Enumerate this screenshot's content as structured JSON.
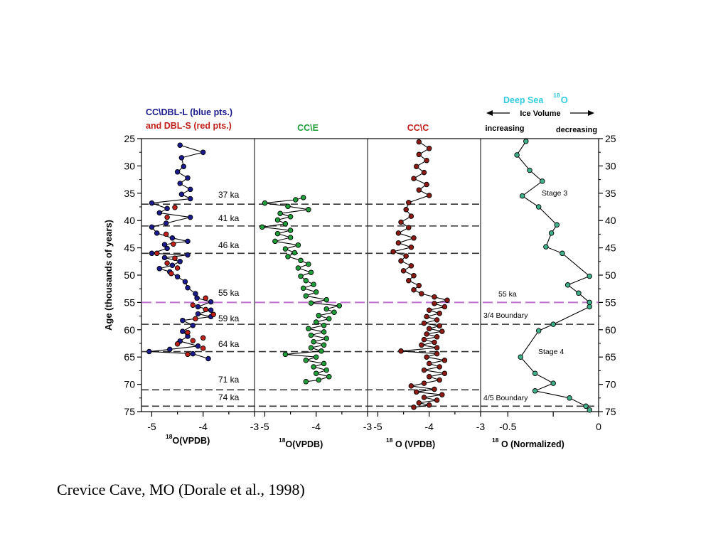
{
  "caption": "Crevice Cave, MO (Dorale et al., 1998)",
  "figure": {
    "y_axis_label": "Age (thousands of years)",
    "header": {
      "blue_line1": "CC\\DBL-L (blue pts.)",
      "red_line2": "and DBL-S (red pts.)",
      "panel2_title": "CC\\E",
      "panel3_title": "CC\\C",
      "deep_sea_title": "Deep Sea",
      "deep_sea_sup": "18",
      "deep_sea_o": "O",
      "ice_volume": "Ice Volume",
      "increasing": "increasing",
      "decreasing": "decreasing"
    },
    "x_labels": [
      {
        "sup": "18",
        "main": "O(VPDB)"
      },
      {
        "sup": "18",
        "main": "O(VPDB)"
      },
      {
        "sup": "18",
        "main": " O (VPDB)"
      },
      {
        "sup": "18",
        "main": " O (Normalized)"
      }
    ],
    "age_ticks": [
      "25",
      "30",
      "35",
      "40",
      "45",
      "50",
      "55",
      "60",
      "65",
      "70",
      "75"
    ],
    "panel_x_ticks": [
      [
        "-5",
        "-4",
        "-3"
      ],
      [
        "-5",
        "-4",
        "-3"
      ],
      [
        "-5",
        "-4",
        "-3"
      ],
      [
        "-0.5",
        "",
        "0"
      ]
    ],
    "event_labels": [
      "37 ka",
      "41 ka",
      "46 ka",
      "55 ka",
      "59 ka",
      "64 ka",
      "71 ka",
      "74 ka"
    ],
    "panel4_labels": {
      "stage3": "Stage 3",
      "ka55": "55 ka",
      "boundary34": "3/4 Boundary",
      "stage4": "Stage 4",
      "boundary45": "4/5 Boundary"
    },
    "colors": {
      "blue": "#1a1a8c",
      "red": "#c0201a",
      "green": "#1f9e3a",
      "dark_red": "#8c1a14",
      "teal": "#3fb08a",
      "cyan": "#33ccdd",
      "magenta": "#c070d0"
    }
  },
  "chart_data": {
    "type": "line",
    "y_axis": {
      "label": "Age (thousands of years)",
      "range": [
        25,
        75
      ],
      "reversed": true
    },
    "event_lines_ka": [
      37,
      41,
      46,
      55,
      59,
      64,
      71,
      74
    ],
    "highlight_line_ka": 55,
    "panel4_boundaries_ka": [
      59,
      74
    ],
    "panels": [
      {
        "title": "CC\\DBL-L (blue pts.) and DBL-S (red pts.)",
        "xlabel": "18O(VPDB)",
        "xlim": [
          -5.2,
          -3
        ],
        "series": [
          {
            "name": "CC\\DBL-L (blue pts.)",
            "color": "#1a1a8c",
            "points": [
              [
                -4.45,
                26.2
              ],
              [
                -4.0,
                27.5
              ],
              [
                -4.42,
                28.5
              ],
              [
                -4.38,
                30.1
              ],
              [
                -4.5,
                31.1
              ],
              [
                -4.3,
                32.2
              ],
              [
                -4.45,
                33.2
              ],
              [
                -4.25,
                34.3
              ],
              [
                -4.42,
                35.2
              ],
              [
                -4.25,
                36.0
              ],
              [
                -5.0,
                36.8
              ],
              [
                -4.7,
                37.8
              ],
              [
                -4.85,
                38.6
              ],
              [
                -4.25,
                39.4
              ],
              [
                -4.72,
                40.5
              ],
              [
                -5.0,
                41.2
              ],
              [
                -4.9,
                42.3
              ],
              [
                -4.6,
                43.2
              ],
              [
                -4.3,
                43.8
              ],
              [
                -4.75,
                44.4
              ],
              [
                -4.7,
                45.1
              ],
              [
                -5.0,
                46.0
              ],
              [
                -4.3,
                46.3
              ],
              [
                -4.75,
                46.8
              ],
              [
                -4.45,
                47.5
              ],
              [
                -4.6,
                48.2
              ],
              [
                -4.85,
                48.8
              ],
              [
                -4.65,
                49.4
              ],
              [
                -4.5,
                50.3
              ],
              [
                -4.35,
                51.2
              ],
              [
                -4.3,
                52.3
              ],
              [
                -4.15,
                53.4
              ],
              [
                -4.12,
                54.2
              ],
              [
                -3.85,
                54.9
              ],
              [
                -4.1,
                55.8
              ],
              [
                -3.85,
                56.4
              ],
              [
                -4.1,
                57.1
              ],
              [
                -3.85,
                57.6
              ],
              [
                -4.4,
                58.3
              ],
              [
                -4.2,
                59.2
              ],
              [
                -4.4,
                60.3
              ],
              [
                -4.3,
                61.2
              ],
              [
                -4.45,
                62.1
              ],
              [
                -4.1,
                63.0
              ],
              [
                -4.65,
                63.6
              ],
              [
                -5.05,
                64.0
              ],
              [
                -4.2,
                64.4
              ],
              [
                -3.9,
                65.3
              ]
            ]
          },
          {
            "name": "DBL-S (red pts.)",
            "color": "#c0201a",
            "points": [
              [
                -4.55,
                37.6
              ],
              [
                -4.7,
                39.4
              ],
              [
                -4.72,
                42.5
              ],
              [
                -4.58,
                44.3
              ],
              [
                -4.9,
                46.0
              ],
              [
                -4.55,
                46.9
              ],
              [
                -4.7,
                47.8
              ],
              [
                -4.5,
                48.7
              ],
              [
                -4.62,
                49.7
              ],
              [
                -3.95,
                54.2
              ],
              [
                -4.2,
                55.5
              ],
              [
                -3.95,
                56.3
              ],
              [
                -3.8,
                57.2
              ],
              [
                -4.15,
                58.0
              ],
              [
                -4.3,
                60.5
              ],
              [
                -4.0,
                61.5
              ],
              [
                -4.2,
                62.0
              ],
              [
                -4.5,
                62.6
              ],
              [
                -4.0,
                63.4
              ],
              [
                -4.3,
                64.5
              ]
            ]
          }
        ]
      },
      {
        "title": "CC\\E",
        "xlabel": "18O(VPDB)",
        "xlim": [
          -5.2,
          -3
        ],
        "series": [
          {
            "name": "CC\\E",
            "color": "#1f9e3a",
            "points": [
              [
                -4.25,
                35.8
              ],
              [
                -4.4,
                36.2
              ],
              [
                -5.0,
                36.8
              ],
              [
                -4.55,
                37.4
              ],
              [
                -4.15,
                38.0
              ],
              [
                -4.7,
                38.7
              ],
              [
                -4.5,
                39.3
              ],
              [
                -4.75,
                39.9
              ],
              [
                -4.6,
                40.6
              ],
              [
                -5.05,
                41.2
              ],
              [
                -4.5,
                41.8
              ],
              [
                -4.75,
                42.4
              ],
              [
                -4.5,
                43.1
              ],
              [
                -4.8,
                43.8
              ],
              [
                -4.35,
                44.5
              ],
              [
                -4.6,
                45.2
              ],
              [
                -4.42,
                45.9
              ],
              [
                -4.55,
                46.6
              ],
              [
                -4.3,
                47.3
              ],
              [
                -4.15,
                48.0
              ],
              [
                -4.35,
                48.7
              ],
              [
                -4.1,
                49.5
              ],
              [
                -4.3,
                50.2
              ],
              [
                -4.2,
                51.0
              ],
              [
                -4.05,
                51.7
              ],
              [
                -4.25,
                52.4
              ],
              [
                -4.0,
                53.1
              ],
              [
                -4.2,
                53.8
              ],
              [
                -3.8,
                54.5
              ],
              [
                -4.1,
                55.1
              ],
              [
                -3.55,
                55.6
              ],
              [
                -3.8,
                56.2
              ],
              [
                -3.65,
                56.8
              ],
              [
                -3.95,
                57.4
              ],
              [
                -3.75,
                58.0
              ],
              [
                -4.0,
                58.6
              ],
              [
                -3.85,
                59.2
              ],
              [
                -4.15,
                59.8
              ],
              [
                -3.85,
                60.4
              ],
              [
                -4.1,
                61.0
              ],
              [
                -3.8,
                61.6
              ],
              [
                -4.05,
                62.2
              ],
              [
                -3.85,
                62.8
              ],
              [
                -4.1,
                63.3
              ],
              [
                -3.9,
                63.9
              ],
              [
                -4.6,
                64.5
              ],
              [
                -4.0,
                65.0
              ],
              [
                -4.2,
                65.6
              ],
              [
                -3.85,
                66.2
              ],
              [
                -4.05,
                66.8
              ],
              [
                -3.8,
                67.4
              ],
              [
                -4.0,
                68.0
              ],
              [
                -3.75,
                68.6
              ],
              [
                -3.95,
                69.2
              ],
              [
                -4.2,
                69.5
              ]
            ]
          }
        ]
      },
      {
        "title": "CC\\C",
        "xlabel": "18 O (VPDB)",
        "xlim": [
          -5.2,
          -3
        ],
        "series": [
          {
            "name": "CC\\C",
            "color": "#8c1a14",
            "points": [
              [
                -4.2,
                25.6
              ],
              [
                -4.0,
                26.8
              ],
              [
                -4.2,
                27.9
              ],
              [
                -4.05,
                29.0
              ],
              [
                -4.25,
                30.1
              ],
              [
                -4.1,
                31.2
              ],
              [
                -4.3,
                32.3
              ],
              [
                -4.05,
                33.4
              ],
              [
                -4.2,
                34.4
              ],
              [
                -4.0,
                35.4
              ],
              [
                -4.4,
                36.7
              ],
              [
                -4.45,
                38.0
              ],
              [
                -4.35,
                39.2
              ],
              [
                -4.55,
                40.3
              ],
              [
                -4.4,
                41.3
              ],
              [
                -4.6,
                42.3
              ],
              [
                -4.3,
                43.2
              ],
              [
                -4.6,
                44.1
              ],
              [
                -4.35,
                44.9
              ],
              [
                -4.7,
                45.7
              ],
              [
                -4.45,
                46.5
              ],
              [
                -4.55,
                47.4
              ],
              [
                -4.35,
                48.3
              ],
              [
                -4.5,
                49.2
              ],
              [
                -4.3,
                50.1
              ],
              [
                -4.4,
                51.0
              ],
              [
                -4.2,
                51.9
              ],
              [
                -4.3,
                52.7
              ],
              [
                -4.15,
                53.4
              ],
              [
                -3.9,
                54.0
              ],
              [
                -3.65,
                54.6
              ],
              [
                -3.9,
                55.2
              ],
              [
                -3.7,
                55.8
              ],
              [
                -4.0,
                56.4
              ],
              [
                -3.8,
                57.0
              ],
              [
                -4.05,
                57.6
              ],
              [
                -3.85,
                58.2
              ],
              [
                -4.1,
                58.8
              ],
              [
                -3.8,
                59.3
              ],
              [
                -4.0,
                59.8
              ],
              [
                -3.75,
                60.3
              ],
              [
                -4.05,
                60.8
              ],
              [
                -3.85,
                61.3
              ],
              [
                -4.1,
                61.8
              ],
              [
                -3.9,
                62.3
              ],
              [
                -4.15,
                62.8
              ],
              [
                -3.85,
                63.3
              ],
              [
                -4.55,
                63.9
              ],
              [
                -3.85,
                64.4
              ],
              [
                -4.05,
                65.0
              ],
              [
                -3.7,
                65.6
              ],
              [
                -4.0,
                66.2
              ],
              [
                -3.8,
                66.8
              ],
              [
                -4.1,
                67.4
              ],
              [
                -3.7,
                68.0
              ],
              [
                -4.0,
                68.6
              ],
              [
                -3.8,
                69.2
              ],
              [
                -4.1,
                69.8
              ],
              [
                -4.35,
                70.3
              ],
              [
                -3.9,
                70.9
              ],
              [
                -4.25,
                71.4
              ],
              [
                -3.75,
                71.9
              ],
              [
                -4.1,
                72.4
              ],
              [
                -3.85,
                72.9
              ],
              [
                -4.2,
                73.4
              ],
              [
                -4.0,
                73.8
              ],
              [
                -4.3,
                74.2
              ]
            ]
          }
        ]
      },
      {
        "title": "Deep Sea 18O",
        "xlabel": "18 O (Normalized)",
        "xlim": [
          -0.65,
          0
        ],
        "series": [
          {
            "name": "Deep Sea 18O",
            "color": "#3fb08a",
            "points": [
              [
                -0.4,
                25.5
              ],
              [
                -0.45,
                28.0
              ],
              [
                -0.38,
                30.8
              ],
              [
                -0.31,
                32.8
              ],
              [
                -0.42,
                35.5
              ],
              [
                -0.33,
                37.5
              ],
              [
                -0.23,
                40.8
              ],
              [
                -0.26,
                42.3
              ],
              [
                -0.29,
                44.8
              ],
              [
                -0.2,
                46.0
              ],
              [
                -0.05,
                50.2
              ],
              [
                -0.17,
                51.8
              ],
              [
                -0.11,
                53.3
              ],
              [
                -0.05,
                55.0
              ],
              [
                -0.05,
                55.8
              ],
              [
                -0.25,
                59.0
              ],
              [
                -0.33,
                60.2
              ],
              [
                -0.43,
                65.0
              ],
              [
                -0.35,
                68.0
              ],
              [
                -0.25,
                69.8
              ],
              [
                -0.35,
                71.2
              ],
              [
                -0.16,
                72.5
              ],
              [
                -0.07,
                74.0
              ],
              [
                -0.05,
                74.7
              ]
            ]
          }
        ]
      }
    ]
  }
}
